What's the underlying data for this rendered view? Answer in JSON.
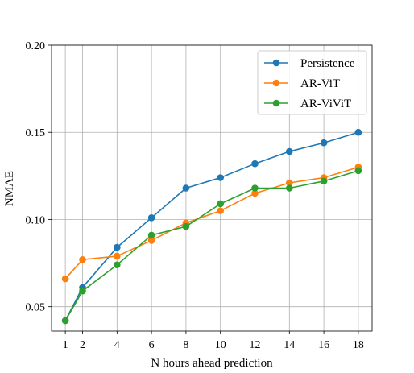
{
  "chart_data": {
    "type": "line",
    "title": "",
    "xlabel": "N hours ahead prediction",
    "ylabel": "NMAE",
    "x": [
      1,
      2,
      4,
      6,
      8,
      10,
      12,
      14,
      16,
      18
    ],
    "x_ticks": [
      "1",
      "2",
      "4",
      "6",
      "8",
      "10",
      "12",
      "14",
      "16",
      "18"
    ],
    "y_ticks": [
      "0.05",
      "0.10",
      "0.15",
      "0.20"
    ],
    "xlim": [
      0.2,
      18.8
    ],
    "ylim": [
      0.036,
      0.2
    ],
    "grid": true,
    "legend_position": "top-right",
    "series": [
      {
        "name": "Persistence",
        "color": "#1f77b4",
        "values": [
          0.042,
          0.061,
          0.084,
          0.101,
          0.118,
          0.124,
          0.132,
          0.139,
          0.144,
          0.15
        ]
      },
      {
        "name": "AR-ViT",
        "color": "#ff7f0e",
        "values": [
          0.066,
          0.077,
          0.079,
          0.088,
          0.098,
          0.105,
          0.115,
          0.121,
          0.124,
          0.13
        ]
      },
      {
        "name": "AR-ViViT",
        "color": "#2ca02c",
        "values": [
          0.042,
          0.059,
          0.074,
          0.091,
          0.096,
          0.109,
          0.118,
          0.118,
          0.122,
          0.128
        ]
      }
    ]
  }
}
